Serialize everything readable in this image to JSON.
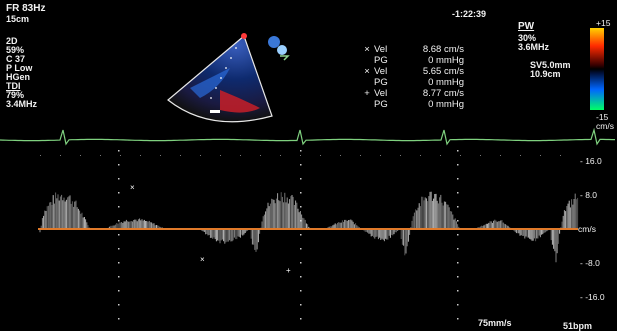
{
  "header": {
    "frame_rate": "FR 83Hz",
    "depth": "15cm",
    "time": "-1:22:39",
    "mode": "PW",
    "top_scale": "+15"
  },
  "left_params": [
    "2D",
    "59%",
    "C 37",
    "P Low",
    "HGen",
    "TDI",
    "79%",
    "3.4MHz"
  ],
  "pw_params": [
    "30%",
    "3.6MHz",
    "SV5.0mm",
    "10.9cm"
  ],
  "measurements": [
    {
      "marker": "×",
      "label": "Vel",
      "value": "8.68 cm/s",
      "pg_label": "PG",
      "pg_value": "0 mmHg"
    },
    {
      "marker": "×",
      "label": "Vel",
      "value": "5.65 cm/s",
      "pg_label": "PG",
      "pg_value": "0 mmHg"
    },
    {
      "marker": "+",
      "label": "Vel",
      "value": "8.77 cm/s",
      "pg_label": "PG",
      "pg_value": "0 mmHg"
    }
  ],
  "colorbar": {
    "top": "+15",
    "bottom": "-15",
    "unit": "cm/s"
  },
  "velocity_axis": {
    "ticks": [
      "16.0",
      "8.0",
      "cm/s",
      "-8.0",
      "-16.0"
    ],
    "values": [
      16,
      8,
      0,
      -8,
      -16
    ]
  },
  "footer": {
    "sweep": "75mm/s",
    "heart_rate": "51bpm"
  },
  "colors": {
    "baseline": "#e07a2a",
    "ecg": "#7fd17f",
    "text": "#f2f2f2"
  }
}
